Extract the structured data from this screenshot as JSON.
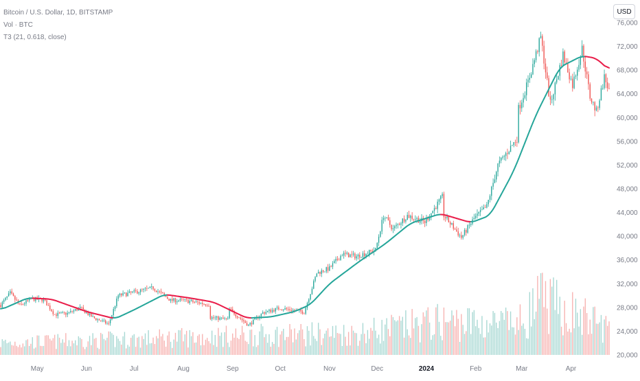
{
  "legend": {
    "symbol_line": "Bitcoin / U.S. Dollar, 1D, BITSTAMP",
    "volume_line": "Vol · BTC",
    "indicator_line": "T3 (21, 0.618, close)"
  },
  "currency_button": {
    "label": "USD"
  },
  "colors": {
    "up": "#26a69a",
    "down": "#ef5350",
    "t3_up": "#26a69a",
    "t3_down": "#e91e4a",
    "axis_text": "#787b86",
    "volume_up": "#a8d8d3",
    "volume_down": "#f7b3b1"
  },
  "chart_data": {
    "type": "candlestick",
    "instrument": "Bitcoin / U.S. Dollar",
    "interval": "1D",
    "exchange": "BITSTAMP",
    "quote_currency": "USD",
    "indicator": "T3 (21, 0.618, close)",
    "x_ticks": [
      "May",
      "Jun",
      "Jul",
      "Aug",
      "Sep",
      "Oct",
      "Nov",
      "Dec",
      "2024",
      "Feb",
      "Mar",
      "Apr"
    ],
    "y_ticks": [
      "20,000",
      "24,000",
      "28,000",
      "32,000",
      "36,000",
      "40,000",
      "44,000",
      "48,000",
      "52,000",
      "56,000",
      "60,000",
      "64,000",
      "68,000",
      "72,000",
      "76,000"
    ],
    "y_range": [
      20000,
      76000
    ],
    "x_range": [
      "2023-04-08",
      "2024-04-25"
    ],
    "price_path": [
      [
        "2023-04-08",
        28400
      ],
      [
        "2023-04-14",
        30400
      ],
      [
        "2023-04-20",
        28300
      ],
      [
        "2023-04-27",
        29400
      ],
      [
        "2023-05-05",
        29300
      ],
      [
        "2023-05-12",
        26800
      ],
      [
        "2023-05-20",
        27000
      ],
      [
        "2023-05-28",
        27900
      ],
      [
        "2023-06-05",
        26300
      ],
      [
        "2023-06-15",
        25200
      ],
      [
        "2023-06-21",
        30000
      ],
      [
        "2023-06-30",
        30500
      ],
      [
        "2023-07-13",
        31300
      ],
      [
        "2023-07-24",
        29200
      ],
      [
        "2023-08-01",
        29200
      ],
      [
        "2023-08-17",
        28500
      ],
      [
        "2023-08-18",
        26300
      ],
      [
        "2023-08-29",
        26000
      ],
      [
        "2023-08-30",
        27700
      ],
      [
        "2023-09-11",
        25000
      ],
      [
        "2023-09-20",
        27100
      ],
      [
        "2023-10-01",
        27900
      ],
      [
        "2023-10-16",
        27200
      ],
      [
        "2023-10-24",
        33800
      ],
      [
        "2023-11-01",
        34600
      ],
      [
        "2023-11-09",
        37000
      ],
      [
        "2023-11-18",
        36600
      ],
      [
        "2023-11-30",
        37700
      ],
      [
        "2023-12-05",
        43500
      ],
      [
        "2023-12-11",
        41200
      ],
      [
        "2023-12-20",
        43500
      ],
      [
        "2023-12-31",
        42400
      ],
      [
        "2024-01-11",
        46600
      ],
      [
        "2024-01-12",
        43500
      ],
      [
        "2024-01-23",
        39800
      ],
      [
        "2024-01-31",
        43000
      ],
      [
        "2024-02-08",
        45000
      ],
      [
        "2024-02-15",
        52000
      ],
      [
        "2024-02-27",
        56500
      ],
      [
        "2024-02-28",
        61500
      ],
      [
        "2024-03-05",
        66000
      ],
      [
        "2024-03-13",
        73500
      ],
      [
        "2024-03-19",
        62300
      ],
      [
        "2024-03-27",
        70600
      ],
      [
        "2024-04-02",
        65500
      ],
      [
        "2024-04-08",
        71600
      ],
      [
        "2024-04-13",
        63500
      ],
      [
        "2024-04-17",
        61000
      ],
      [
        "2024-04-22",
        66800
      ],
      [
        "2024-04-25",
        64500
      ]
    ],
    "t3_path": [
      [
        "2023-04-08",
        27600
      ],
      [
        "2023-04-25",
        29600
      ],
      [
        "2023-05-10",
        29400
      ],
      [
        "2023-06-01",
        27300
      ],
      [
        "2023-06-19",
        26100
      ],
      [
        "2023-07-01",
        27600
      ],
      [
        "2023-07-20",
        30200
      ],
      [
        "2023-08-05",
        29600
      ],
      [
        "2023-08-20",
        28900
      ],
      [
        "2023-09-10",
        26200
      ],
      [
        "2023-09-25",
        26400
      ],
      [
        "2023-10-10",
        27300
      ],
      [
        "2023-10-20",
        28500
      ],
      [
        "2023-11-01",
        32000
      ],
      [
        "2023-11-20",
        35800
      ],
      [
        "2023-12-06",
        38700
      ],
      [
        "2023-12-22",
        42200
      ],
      [
        "2024-01-10",
        43800
      ],
      [
        "2024-01-29",
        42300
      ],
      [
        "2024-02-10",
        43500
      ],
      [
        "2024-02-25",
        51000
      ],
      [
        "2024-03-10",
        60500
      ],
      [
        "2024-03-25",
        68500
      ],
      [
        "2024-04-08",
        70400
      ],
      [
        "2024-04-17",
        70000
      ],
      [
        "2024-04-25",
        68000
      ]
    ],
    "volume_envelope": [
      [
        "2023-04-08",
        0.2
      ],
      [
        "2023-06-20",
        0.25
      ],
      [
        "2023-08-17",
        0.3
      ],
      [
        "2023-10-24",
        0.35
      ],
      [
        "2023-11-15",
        0.35
      ],
      [
        "2024-01-11",
        0.55
      ],
      [
        "2024-02-28",
        0.5
      ],
      [
        "2024-03-13",
        0.9
      ],
      [
        "2024-04-25",
        0.45
      ]
    ]
  }
}
